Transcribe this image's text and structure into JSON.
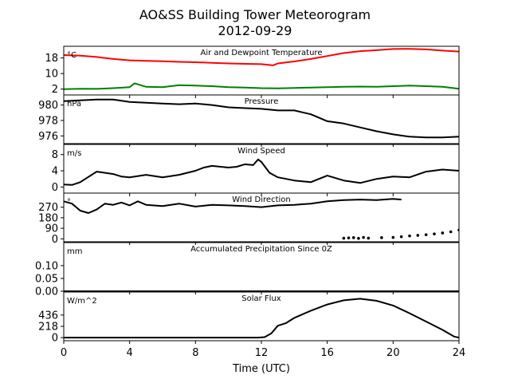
{
  "chart_data": {
    "type": "line",
    "title_line1": "AO&SS Building Tower Meteorogram",
    "title_line2": "2012-09-29",
    "xlabel": "Time (UTC)",
    "xlim": [
      0,
      24
    ],
    "xticks": [
      0,
      4,
      8,
      12,
      16,
      20,
      24
    ],
    "colors": {
      "temperature": "#ff0000",
      "dewpoint": "#008000",
      "default": "#000000"
    },
    "panels": [
      {
        "id": "temp",
        "title": "Air and Dewpoint Temperature",
        "unit": "°C",
        "ylim": [
          -1,
          24
        ],
        "yticks": [
          2,
          10,
          18
        ],
        "series": [
          {
            "key": "temperature",
            "color": "#ff0000",
            "style": "line",
            "x": [
              0,
              1,
              2,
              3,
              4,
              5,
              6,
              7,
              8,
              9,
              10,
              11,
              12,
              12.7,
              13,
              14,
              15,
              16,
              17,
              18,
              19,
              20,
              21,
              22,
              23,
              24
            ],
            "y": [
              19.5,
              19.2,
              18.5,
              17.5,
              16.8,
              16.5,
              16.3,
              16.0,
              15.8,
              15.5,
              15.2,
              15.0,
              14.8,
              14.2,
              15.2,
              16.2,
              17.5,
              19.0,
              20.5,
              21.5,
              22.0,
              22.6,
              22.7,
              22.4,
              21.8,
              21.3
            ]
          },
          {
            "key": "dewpoint",
            "color": "#008000",
            "style": "line",
            "x": [
              0,
              1,
              2,
              3,
              4,
              4.3,
              5,
              6,
              7,
              8,
              9,
              10,
              11,
              12,
              13,
              14,
              15,
              16,
              17,
              18,
              19,
              20,
              21,
              22,
              23,
              24
            ],
            "y": [
              2.0,
              2.2,
              2.1,
              2.5,
              3.0,
              5.0,
              3.2,
              3.0,
              4.0,
              3.8,
              3.5,
              3.0,
              2.8,
              2.5,
              2.4,
              2.6,
              2.8,
              3.0,
              3.2,
              3.3,
              3.2,
              3.5,
              3.8,
              3.5,
              3.2,
              2.2
            ]
          }
        ]
      },
      {
        "id": "pressure",
        "title": "Pressure",
        "unit": "hPa",
        "ylim": [
          975.0,
          981.3
        ],
        "yticks": [
          976,
          978,
          980
        ],
        "series": [
          {
            "key": "pressure",
            "color": "#000000",
            "style": "line",
            "x": [
              0,
              1,
              2,
              3,
              4,
              5,
              6,
              7,
              8,
              9,
              10,
              11,
              12,
              13,
              14,
              15,
              16,
              17,
              18,
              19,
              20,
              21,
              22,
              23,
              24
            ],
            "y": [
              980.5,
              980.6,
              980.7,
              980.7,
              980.4,
              980.3,
              980.2,
              980.1,
              980.2,
              980.0,
              979.7,
              979.6,
              979.5,
              979.3,
              979.3,
              978.8,
              977.9,
              977.6,
              977.1,
              976.6,
              976.2,
              975.9,
              975.8,
              975.8,
              975.9
            ]
          }
        ]
      },
      {
        "id": "wind_speed",
        "title": "Wind Speed",
        "unit": "m/s",
        "ylim": [
          -1.5,
          10.5
        ],
        "yticks": [
          0,
          4,
          8
        ],
        "series": [
          {
            "key": "wind_speed",
            "color": "#000000",
            "style": "line",
            "x": [
              0,
              0.5,
              1,
              1.5,
              2,
              3,
              3.5,
              4,
              5,
              6,
              7,
              8,
              8.5,
              9,
              10,
              10.5,
              11,
              11.5,
              11.8,
              12,
              12.5,
              13,
              14,
              15,
              16,
              17,
              18,
              19,
              20,
              21,
              22,
              23,
              24
            ],
            "y": [
              0.6,
              0.5,
              1.2,
              2.5,
              3.8,
              3.2,
              2.6,
              2.4,
              3.0,
              2.4,
              3.0,
              4.0,
              4.8,
              5.2,
              4.8,
              5.0,
              5.6,
              5.4,
              6.8,
              6.2,
              3.5,
              2.4,
              1.6,
              1.2,
              2.8,
              1.6,
              1.0,
              2.0,
              2.6,
              2.4,
              3.8,
              4.3,
              4.0
            ]
          }
        ]
      },
      {
        "id": "wind_dir",
        "title": "Wind Direction",
        "unit": "°",
        "ylim": [
          -25,
          390
        ],
        "yticks": [
          0,
          90,
          180,
          270
        ],
        "series": [
          {
            "key": "wind_direction_line",
            "color": "#000000",
            "style": "line",
            "x": [
              0,
              0.5,
              1,
              1.5,
              2,
              2.5,
              3,
              3.5,
              4,
              4.5,
              5,
              6,
              7,
              8,
              9,
              10,
              11,
              12,
              13,
              14,
              15,
              16,
              17,
              18,
              19,
              20,
              20.5
            ],
            "y": [
              320,
              300,
              240,
              220,
              250,
              300,
              290,
              310,
              285,
              320,
              290,
              280,
              300,
              275,
              290,
              285,
              280,
              270,
              285,
              290,
              300,
              320,
              330,
              335,
              330,
              340,
              335
            ]
          },
          {
            "key": "wind_direction_points",
            "color": "#000000",
            "style": "dots",
            "x": [
              17.0,
              17.3,
              17.6,
              17.9,
              18.2,
              18.5,
              19.3,
              20.0,
              20.5,
              21.0,
              21.5,
              22.0,
              22.5,
              23.0,
              23.5,
              24.0
            ],
            "y": [
              5,
              8,
              10,
              4,
              12,
              6,
              10,
              12,
              18,
              25,
              30,
              35,
              42,
              50,
              60,
              75
            ]
          }
        ]
      },
      {
        "id": "precip",
        "title": "Accumulated Precipitation Since 0Z",
        "unit": "mm",
        "ylim": [
          0.0,
          0.19
        ],
        "yticks": [
          0.0,
          0.05,
          0.1
        ],
        "tick_labels": [
          "0.00",
          "0.05",
          "0.10"
        ],
        "series": [
          {
            "key": "precipitation",
            "color": "#000000",
            "style": "line",
            "x": [
              0,
              24
            ],
            "y": [
              0,
              0
            ]
          }
        ]
      },
      {
        "id": "solar",
        "title": "Solar Flux",
        "unit": "W/m^2",
        "ylim": [
          -60,
          880
        ],
        "yticks": [
          0,
          218,
          436
        ],
        "series": [
          {
            "key": "solar_flux",
            "color": "#000000",
            "style": "line",
            "x": [
              0,
              11.8,
              12.2,
              12.6,
              13,
              13.5,
              14,
              15,
              16,
              17,
              18,
              19,
              20,
              21,
              22,
              23,
              23.7,
              24
            ],
            "y": [
              0,
              0,
              10,
              80,
              230,
              280,
              380,
              520,
              640,
              720,
              750,
              710,
              620,
              470,
              310,
              150,
              20,
              0
            ]
          }
        ]
      }
    ]
  }
}
